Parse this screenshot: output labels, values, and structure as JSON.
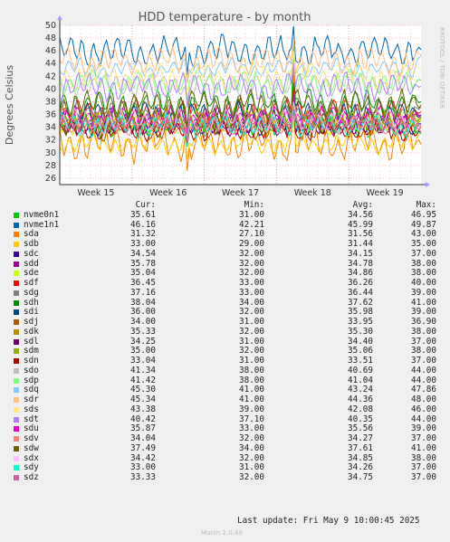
{
  "chart_data": {
    "type": "line",
    "title": "HDD temperature - by month",
    "ylabel": "Degrees Celsius",
    "ylim": [
      25,
      50
    ],
    "yticks": [
      26,
      28,
      30,
      32,
      34,
      36,
      38,
      40,
      42,
      44,
      46,
      48,
      50
    ],
    "xticks": [
      "Week 15",
      "Week 16",
      "Week 17",
      "Week 18",
      "Week 19"
    ],
    "grid": true,
    "legend_position": "bottom",
    "columns": [
      "Cur:",
      "Min:",
      "Avg:",
      "Max:"
    ],
    "series": [
      {
        "name": "nvme0n1",
        "color": "#00cc00",
        "cur": "35.61",
        "min": "31.00",
        "avg": "34.56",
        "max": "46.95"
      },
      {
        "name": "nvme1n1",
        "color": "#0066b3",
        "cur": "46.16",
        "min": "42.21",
        "avg": "45.99",
        "max": "49.87"
      },
      {
        "name": "sda",
        "color": "#ff8000",
        "cur": "31.32",
        "min": "27.10",
        "avg": "31.56",
        "max": "43.00"
      },
      {
        "name": "sdb",
        "color": "#ffcc00",
        "cur": "33.00",
        "min": "29.00",
        "avg": "31.44",
        "max": "35.00"
      },
      {
        "name": "sdc",
        "color": "#330099",
        "cur": "34.54",
        "min": "32.00",
        "avg": "34.15",
        "max": "37.00"
      },
      {
        "name": "sdd",
        "color": "#990099",
        "cur": "35.78",
        "min": "32.00",
        "avg": "34.78",
        "max": "38.00"
      },
      {
        "name": "sde",
        "color": "#ccff00",
        "cur": "35.04",
        "min": "32.00",
        "avg": "34.86",
        "max": "38.00"
      },
      {
        "name": "sdf",
        "color": "#ff0000",
        "cur": "36.45",
        "min": "33.00",
        "avg": "36.26",
        "max": "40.00"
      },
      {
        "name": "sdg",
        "color": "#808080",
        "cur": "37.16",
        "min": "33.00",
        "avg": "36.44",
        "max": "39.00"
      },
      {
        "name": "sdh",
        "color": "#008f00",
        "cur": "38.04",
        "min": "34.00",
        "avg": "37.62",
        "max": "41.00"
      },
      {
        "name": "sdi",
        "color": "#00487d",
        "cur": "36.00",
        "min": "32.00",
        "avg": "35.98",
        "max": "39.00"
      },
      {
        "name": "sdj",
        "color": "#b35a00",
        "cur": "34.00",
        "min": "31.00",
        "avg": "33.95",
        "max": "36.90"
      },
      {
        "name": "sdk",
        "color": "#b38f00",
        "cur": "35.33",
        "min": "32.00",
        "avg": "35.30",
        "max": "38.00"
      },
      {
        "name": "sdl",
        "color": "#6b006b",
        "cur": "34.25",
        "min": "31.00",
        "avg": "34.40",
        "max": "37.00"
      },
      {
        "name": "sdm",
        "color": "#8fb300",
        "cur": "35.00",
        "min": "32.00",
        "avg": "35.06",
        "max": "38.00"
      },
      {
        "name": "sdn",
        "color": "#b30000",
        "cur": "33.04",
        "min": "31.00",
        "avg": "33.51",
        "max": "37.00"
      },
      {
        "name": "sdo",
        "color": "#bebebe",
        "cur": "41.34",
        "min": "38.00",
        "avg": "40.69",
        "max": "44.00"
      },
      {
        "name": "sdp",
        "color": "#80ff80",
        "cur": "41.42",
        "min": "38.00",
        "avg": "41.04",
        "max": "44.00"
      },
      {
        "name": "sdq",
        "color": "#80c9ff",
        "cur": "45.30",
        "min": "41.00",
        "avg": "43.24",
        "max": "47.86"
      },
      {
        "name": "sdr",
        "color": "#ffc080",
        "cur": "45.34",
        "min": "41.00",
        "avg": "44.36",
        "max": "48.00"
      },
      {
        "name": "sds",
        "color": "#ffe680",
        "cur": "43.38",
        "min": "39.00",
        "avg": "42.08",
        "max": "46.00"
      },
      {
        "name": "sdt",
        "color": "#aa80ff",
        "cur": "40.42",
        "min": "37.10",
        "avg": "40.35",
        "max": "44.00"
      },
      {
        "name": "sdu",
        "color": "#ee00cc",
        "cur": "35.87",
        "min": "33.00",
        "avg": "35.56",
        "max": "39.00"
      },
      {
        "name": "sdv",
        "color": "#ff8080",
        "cur": "34.04",
        "min": "32.00",
        "avg": "34.27",
        "max": "37.00"
      },
      {
        "name": "sdw",
        "color": "#666600",
        "cur": "37.49",
        "min": "34.00",
        "avg": "37.61",
        "max": "41.00"
      },
      {
        "name": "sdx",
        "color": "#ffbfff",
        "cur": "34.42",
        "min": "32.00",
        "avg": "34.85",
        "max": "38.00"
      },
      {
        "name": "sdy",
        "color": "#00ffcc",
        "cur": "33.00",
        "min": "31.00",
        "avg": "34.26",
        "max": "37.00"
      },
      {
        "name": "sdz",
        "color": "#cc6699",
        "cur": "33.33",
        "min": "32.00",
        "avg": "34.75",
        "max": "37.00"
      }
    ]
  },
  "side_label": "RRDTOOL / TOBI OETIKER",
  "last_update": "Last update: Fri May  9 10:00:45 2025",
  "munin_version": "Munin 2.0.49"
}
